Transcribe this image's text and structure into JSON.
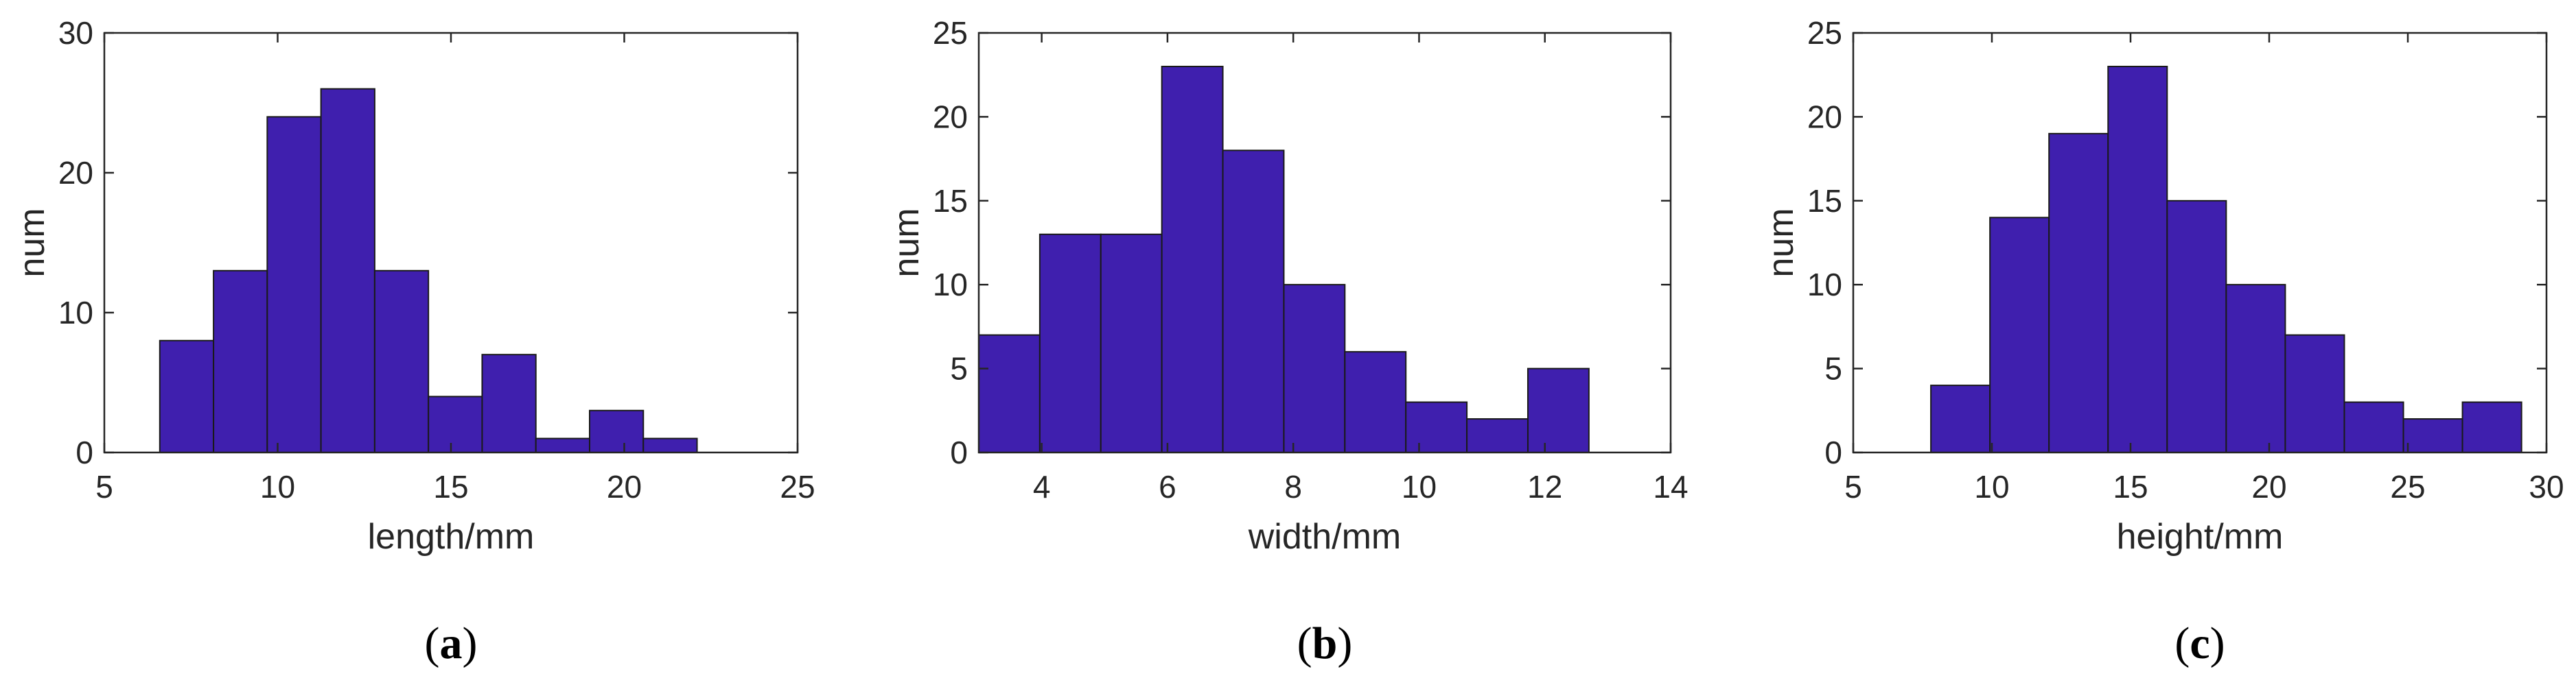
{
  "colors": {
    "bar_fill": "#3f1fae",
    "bar_edge": "#1a1a1a",
    "axis": "#262626"
  },
  "chart_data": [
    {
      "type": "bar",
      "caption": "(a)",
      "caption_letter": "a",
      "xlabel": "length/mm",
      "ylabel": "num",
      "xlim": [
        5,
        25
      ],
      "ylim": [
        0,
        30
      ],
      "xticks": [
        5,
        10,
        15,
        20,
        25
      ],
      "yticks": [
        0,
        10,
        20,
        30
      ],
      "bin_edges": [
        6.6,
        8.15,
        9.7,
        11.25,
        12.8,
        14.35,
        15.9,
        17.45,
        19.0,
        20.55,
        22.1
      ],
      "values": [
        8,
        13,
        24,
        26,
        13,
        4,
        7,
        1,
        3,
        1
      ]
    },
    {
      "type": "bar",
      "caption": "(b)",
      "caption_letter": "b",
      "xlabel": "width/mm",
      "ylabel": "num",
      "xlim": [
        3,
        14
      ],
      "ylim": [
        0,
        25
      ],
      "xticks": [
        4,
        6,
        8,
        10,
        12,
        14
      ],
      "yticks": [
        0,
        5,
        10,
        15,
        20,
        25
      ],
      "bin_edges": [
        3.0,
        3.97,
        4.94,
        5.91,
        6.88,
        7.85,
        8.82,
        9.79,
        10.76,
        11.73,
        12.7
      ],
      "values": [
        7,
        13,
        13,
        23,
        18,
        10,
        6,
        3,
        2,
        5
      ]
    },
    {
      "type": "bar",
      "caption": "(c)",
      "caption_letter": "c",
      "xlabel": "height/mm",
      "ylabel": "num",
      "xlim": [
        5,
        30
      ],
      "ylim": [
        0,
        25
      ],
      "xticks": [
        5,
        10,
        15,
        20,
        25,
        30
      ],
      "yticks": [
        0,
        5,
        10,
        15,
        20,
        25
      ],
      "bin_edges": [
        7.8,
        9.93,
        12.06,
        14.19,
        16.32,
        18.45,
        20.58,
        22.71,
        24.84,
        26.97,
        29.1
      ],
      "values": [
        4,
        14,
        19,
        23,
        15,
        10,
        7,
        3,
        2,
        3
      ]
    }
  ]
}
